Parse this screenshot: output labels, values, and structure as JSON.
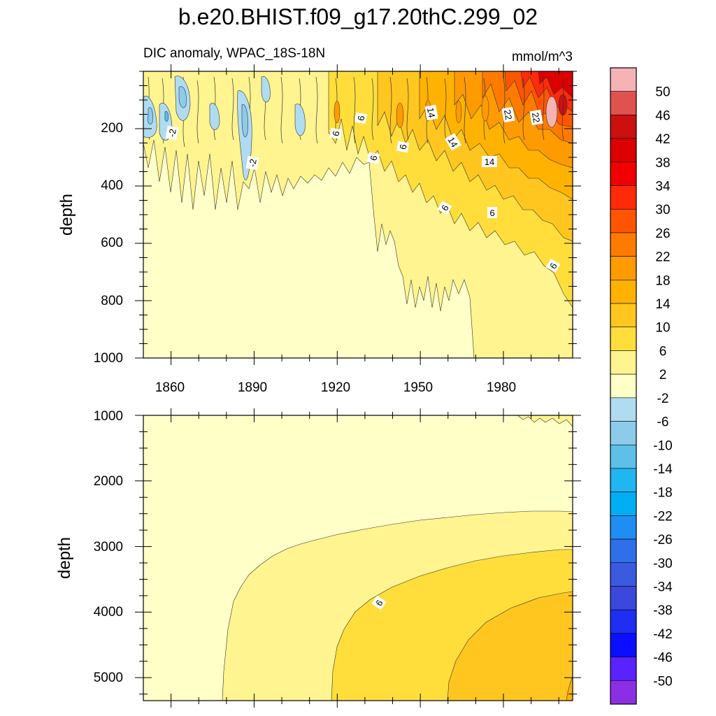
{
  "chart_data": {
    "type": "heatmap",
    "title": "b.e20.BHIST.f09_g17.20thC.299_02",
    "subtitle_left": "DIC anomaly, WPAC_18S-18N",
    "subtitle_right": "mmol/m^3",
    "xlabel": "",
    "ylabel": "depth",
    "x_ticks": [
      "1860",
      "1890",
      "1920",
      "1950",
      "1980"
    ],
    "xlim": [
      1850,
      2005
    ],
    "upper_panel": {
      "ylim": [
        0,
        1000
      ],
      "y_ticks": [
        "200",
        "400",
        "600",
        "800",
        "1000"
      ],
      "contour_labels": [
        "-2",
        "-2",
        "6",
        "6",
        "6",
        "6",
        "14",
        "14",
        "14",
        "22",
        "22",
        "6",
        "6",
        "6",
        "6"
      ]
    },
    "lower_panel": {
      "ylim": [
        1000,
        5350
      ],
      "y_ticks": [
        "1000",
        "2000",
        "3000",
        "4000",
        "5000"
      ],
      "contour_labels": [
        "6"
      ]
    },
    "colorbar": {
      "labels": [
        "50",
        "46",
        "42",
        "38",
        "34",
        "30",
        "26",
        "22",
        "18",
        "14",
        "10",
        "6",
        "2",
        "-2",
        "-6",
        "-10",
        "-14",
        "-18",
        "-22",
        "-26",
        "-30",
        "-34",
        "-38",
        "-42",
        "-46",
        "-50"
      ],
      "colors": [
        "#f5b3b6",
        "#e0524f",
        "#cc1010",
        "#dd0000",
        "#f00000",
        "#ff2a0a",
        "#ff5500",
        "#ff7b00",
        "#ff9a00",
        "#ffb300",
        "#ffc61f",
        "#ffde3c",
        "#fff48f",
        "#ffffc8",
        "#b0dcf2",
        "#8dcbeb",
        "#5ebfe9",
        "#20b6f1",
        "#00aef4",
        "#1f8df2",
        "#2f6fea",
        "#3a5ae0",
        "#3a48dc",
        "#1e2ef2",
        "#0a10ff",
        "#5a22ff",
        "#8c2ee6"
      ]
    }
  }
}
